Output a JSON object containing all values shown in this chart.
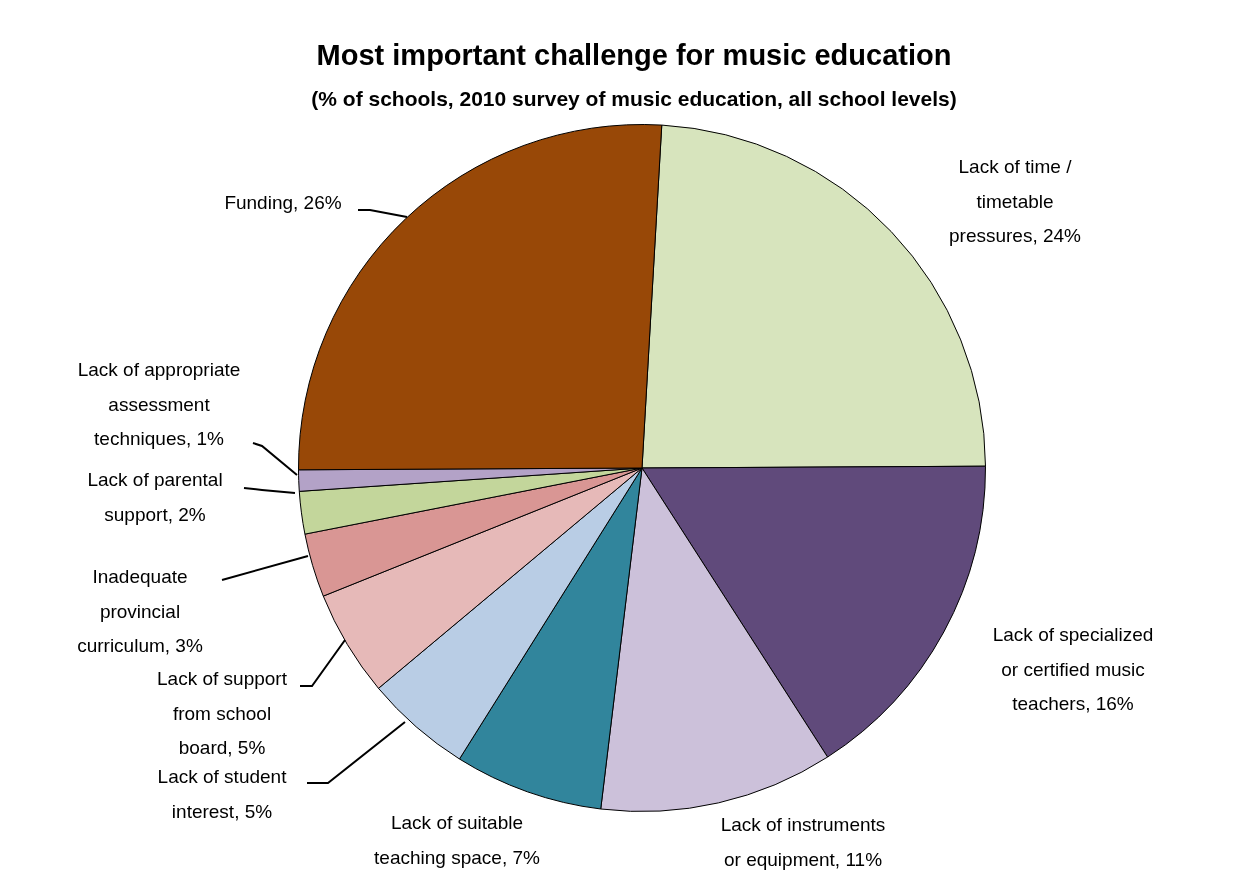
{
  "chart_data": {
    "type": "pie",
    "title": "Most important challenge for music education",
    "subtitle": "(% of schools, 2010 survey of music education, all school levels)",
    "categories": [
      "Lack of time / timetable pressures",
      "Lack of specialized or certified music teachers",
      "Lack of instruments or equipment",
      "Lack of suitable teaching space",
      "Lack of student interest",
      "Lack of support from school board",
      "Inadequate provincial curriculum",
      "Lack of parental support",
      "Lack of appropriate assessment techniques",
      "Funding"
    ],
    "values": [
      24,
      16,
      11,
      7,
      5,
      5,
      3,
      2,
      1,
      26
    ],
    "value_labels": [
      "24%",
      "16%",
      "11%",
      "7%",
      "5%",
      "5%",
      "3%",
      "2%",
      "1%",
      "26%"
    ],
    "colors": [
      "#d7e4bd",
      "#604a7b",
      "#ccc1da",
      "#31859c",
      "#b9cde5",
      "#e6b9b8",
      "#d99694",
      "#c3d69b",
      "#b3a2c7",
      "#984807"
    ],
    "legend": false
  }
}
